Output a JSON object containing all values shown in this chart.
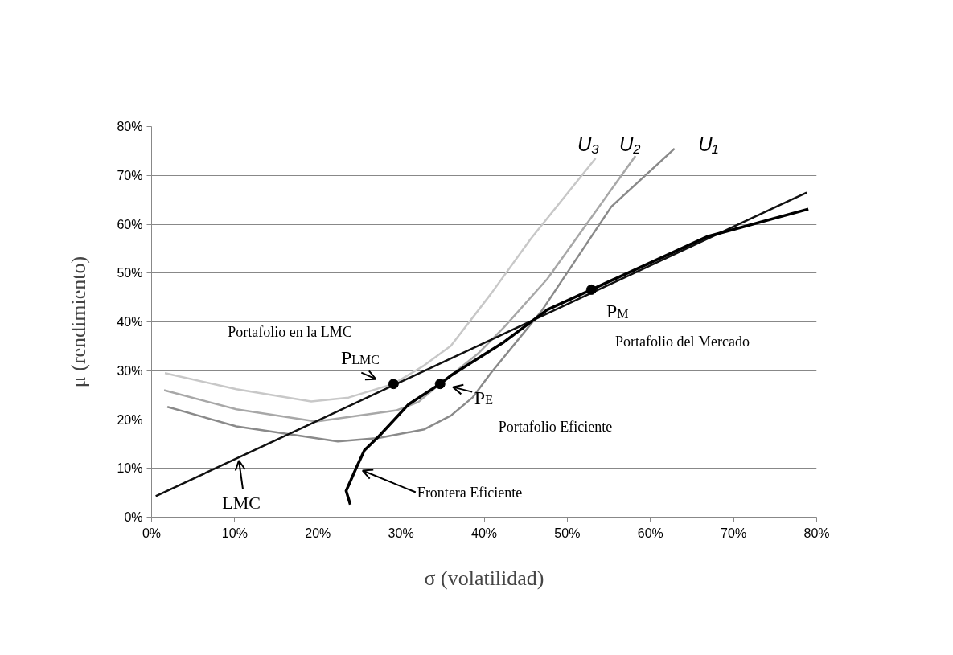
{
  "chart_data": {
    "type": "line",
    "xlabel": "σ (volatilidad)",
    "ylabel": "μ (rendimiento)",
    "xlim": [
      0,
      80
    ],
    "ylim": [
      0,
      80
    ],
    "xticks": [
      {
        "value": 0,
        "label": "0%"
      },
      {
        "value": 10,
        "label": "10%"
      },
      {
        "value": 20,
        "label": "20%"
      },
      {
        "value": 30,
        "label": "30%"
      },
      {
        "value": 40,
        "label": "40%"
      },
      {
        "value": 50,
        "label": "50%"
      },
      {
        "value": 60,
        "label": "60%"
      },
      {
        "value": 70,
        "label": "70%"
      },
      {
        "value": 80,
        "label": "80%"
      }
    ],
    "yticks": [
      {
        "value": 0,
        "label": "0%"
      },
      {
        "value": 10,
        "label": "10%"
      },
      {
        "value": 20,
        "label": "20%"
      },
      {
        "value": 30,
        "label": "30%"
      },
      {
        "value": 40,
        "label": "40%"
      },
      {
        "value": 50,
        "label": "50%"
      },
      {
        "value": 60,
        "label": "60%"
      },
      {
        "value": 70,
        "label": "70%"
      },
      {
        "value": 80,
        "label": "80%"
      }
    ],
    "grid": "y",
    "marker": "none",
    "line_style": "solid",
    "series": [
      {
        "color": "#c8c8c8",
        "x": [
          1.6,
          10.2,
          19.2,
          23.7,
          29.1,
          32.8,
          36.0,
          40.8,
          45.6,
          53.4
        ],
        "values": [
          29.5,
          26.2,
          23.7,
          24.5,
          27.3,
          31.1,
          35.1,
          45.7,
          57.0,
          73.5
        ]
      },
      {
        "color": "#a8a8a8",
        "x": [
          1.5,
          10.2,
          19.8,
          29.5,
          32.1,
          34.7,
          39.2,
          42.4,
          47.6,
          58.2
        ],
        "values": [
          26.0,
          22.1,
          19.6,
          21.9,
          23.6,
          27.3,
          33.4,
          38.9,
          48.8,
          74.0
        ]
      },
      {
        "color": "#8a8a8a",
        "x": [
          1.9,
          10.2,
          22.4,
          27.3,
          32.8,
          36.0,
          38.6,
          40.8,
          46.9,
          55.3,
          62.9
        ],
        "values": [
          22.6,
          18.6,
          15.5,
          16.2,
          18.0,
          20.8,
          24.5,
          29.5,
          42.2,
          63.6,
          75.5
        ]
      },
      {
        "color": "#111111",
        "x": [
          0.5,
          78.8
        ],
        "values": [
          4.3,
          66.5
        ]
      },
      {
        "color": "#000000",
        "x": [
          23.9,
          23.4,
          24.7,
          25.6,
          27.3,
          30.9,
          34.7,
          36.0,
          42.4,
          47.6,
          52.9,
          66.9,
          79.0
        ],
        "values": [
          2.6,
          5.4,
          10.4,
          13.7,
          16.5,
          23.1,
          27.3,
          29.0,
          35.9,
          42.5,
          46.6,
          57.5,
          63.1
        ]
      },
      {
        "type": "scatter",
        "marker": "circle",
        "color": "#000000",
        "x": [
          29.1,
          34.7,
          52.9
        ],
        "values": [
          27.3,
          27.3,
          46.6
        ]
      }
    ],
    "annotations": [
      "Portafolio en la LMC",
      {
        "text": "P$_{LMC}$",
        "x": 29.1,
        "y": 27.3
      },
      {
        "text": "P$_{E}$",
        "x": 34.7,
        "y": 27.3
      },
      "Portafolio Eficiente",
      {
        "text": "P$_{M}$",
        "x": 52.9,
        "y": 46.6
      },
      "Portafolio del Mercado",
      {
        "text": "LMC",
        "x": 10.5,
        "y": 12.6
      },
      {
        "text": "Frontera Eficiente",
        "x": 24.8,
        "y": 10.2
      },
      {
        "text": "U₃",
        "x": 53.4,
        "y": 73.5
      },
      {
        "text": "U₂",
        "x": 58.2,
        "y": 74.0
      },
      {
        "text": "U₁",
        "x": 62.9,
        "y": 75.5
      }
    ]
  }
}
